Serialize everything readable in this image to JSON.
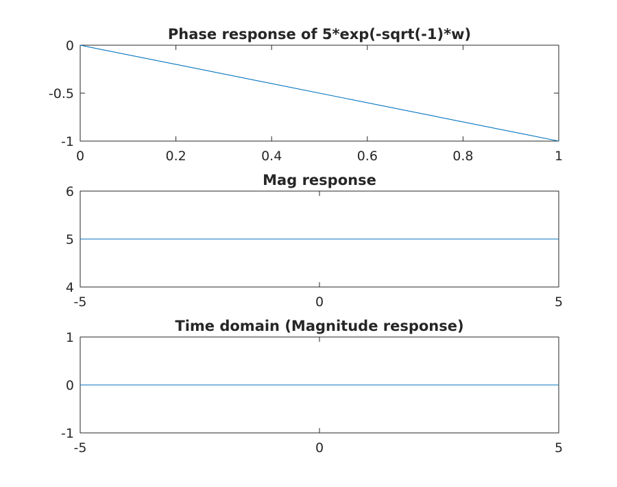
{
  "chart_data": [
    {
      "type": "line",
      "title": "Phase response of 5*exp(-sqrt(-1)*w)",
      "xlabel": "",
      "ylabel": "",
      "xlim": [
        0,
        1
      ],
      "ylim": [
        -1,
        0
      ],
      "xticks": [
        0,
        0.2,
        0.4,
        0.6,
        0.8,
        1
      ],
      "xtick_labels": [
        "0",
        "0.2",
        "0.4",
        "0.6",
        "0.8",
        "1"
      ],
      "yticks": [
        -1,
        -0.5,
        0
      ],
      "ytick_labels": [
        "-1",
        "-0.5",
        "0"
      ],
      "grid": false,
      "series": [
        {
          "x": [
            0,
            1
          ],
          "y": [
            0,
            -1
          ],
          "color": "#0072BD"
        }
      ]
    },
    {
      "type": "line",
      "title": "Mag response",
      "xlabel": "",
      "ylabel": "",
      "xlim": [
        -5,
        5
      ],
      "ylim": [
        4,
        6
      ],
      "xticks": [
        -5,
        0,
        5
      ],
      "xtick_labels": [
        "-5",
        "0",
        "5"
      ],
      "yticks": [
        4,
        5,
        6
      ],
      "ytick_labels": [
        "4",
        "5",
        "6"
      ],
      "grid": false,
      "series": [
        {
          "x": [
            -5,
            5
          ],
          "y": [
            5,
            5
          ],
          "color": "#0072BD"
        }
      ]
    },
    {
      "type": "line",
      "title": "Time domain (Magnitude response)",
      "xlabel": "",
      "ylabel": "",
      "xlim": [
        -5,
        5
      ],
      "ylim": [
        -1,
        1
      ],
      "xticks": [
        -5,
        0,
        5
      ],
      "xtick_labels": [
        "-5",
        "0",
        "5"
      ],
      "yticks": [
        -1,
        0,
        1
      ],
      "ytick_labels": [
        "-1",
        "0",
        "1"
      ],
      "grid": false,
      "series": [
        {
          "x": [
            -5,
            5
          ],
          "y": [
            0,
            0
          ],
          "color": "#0072BD"
        }
      ]
    }
  ]
}
